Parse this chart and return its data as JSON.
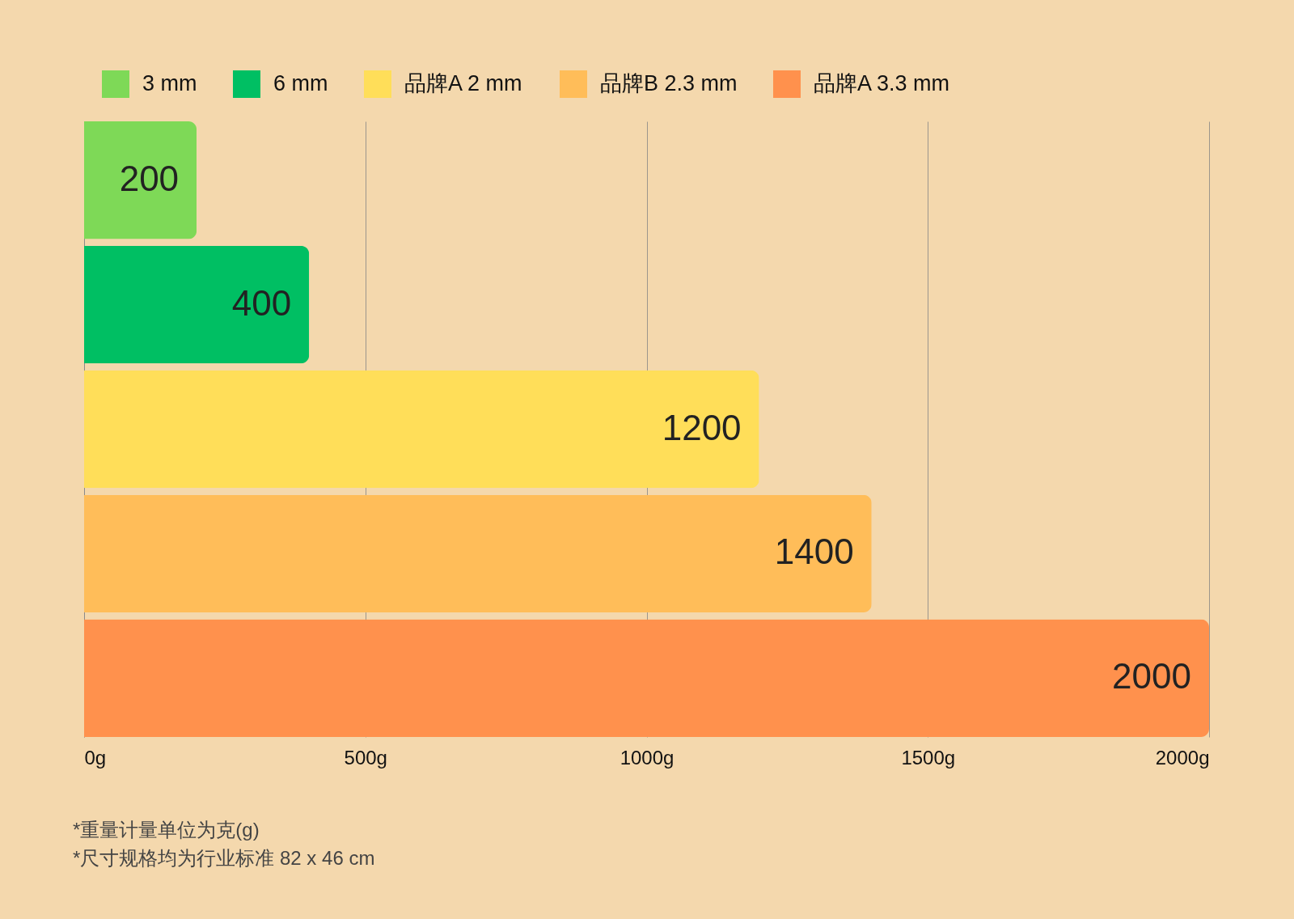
{
  "chart_data": {
    "type": "bar",
    "orientation": "horizontal",
    "categories": [
      null,
      null,
      null,
      null,
      null
    ],
    "series": [
      {
        "name": "3 mm",
        "color": "#7ed957",
        "values": [
          200,
          null,
          null,
          null,
          null
        ]
      },
      {
        "name": "6 mm",
        "color": "#00bf63",
        "values": [
          null,
          400,
          null,
          null,
          null
        ]
      },
      {
        "name": "品牌A 2 mm",
        "color": "#ffde59",
        "values": [
          null,
          null,
          1200,
          null,
          null
        ]
      },
      {
        "name": "品牌B 2.3 mm",
        "color": "#ffbd59",
        "values": [
          null,
          null,
          null,
          1400,
          null
        ]
      },
      {
        "name": "品牌A 3.3 mm",
        "color": "#ff914d",
        "values": [
          null,
          null,
          null,
          null,
          2000
        ]
      }
    ],
    "xlim": [
      0,
      2000
    ],
    "xticks": [
      {
        "value": 0,
        "label": "0g"
      },
      {
        "value": 500,
        "label": "500g"
      },
      {
        "value": 1000,
        "label": "1000g"
      },
      {
        "value": 1500,
        "label": "1500g"
      },
      {
        "value": 2000,
        "label": "2000g"
      }
    ],
    "grid": "x",
    "legend": "top",
    "tick_labels": "x",
    "data_labels": true,
    "annotations": [
      "*重量计量单位为克(g)",
      "*尺寸规格均为行业标准 82 x 46 cm"
    ]
  }
}
